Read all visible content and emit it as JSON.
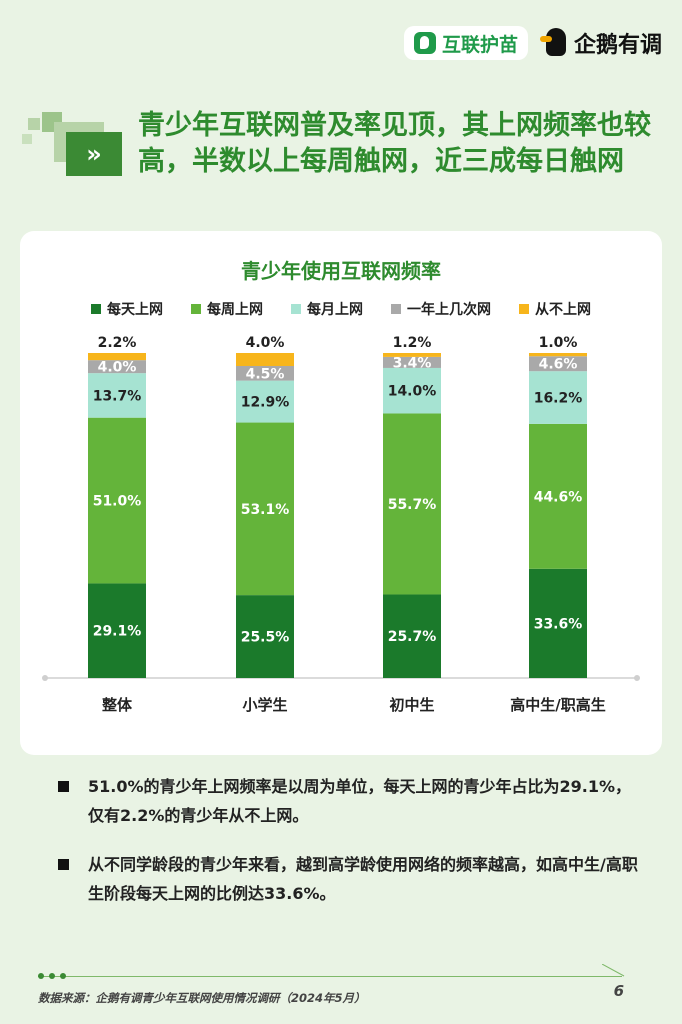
{
  "logos": {
    "huhu": "互联护苗",
    "qe": "企鹅有调"
  },
  "headline": "青少年互联网普及率见顶，其上网频率也较高，半数以上每周触网，近三成每日触网",
  "chart_data": {
    "type": "bar",
    "stacked": true,
    "title": "青少年使用互联网频率",
    "categories": [
      "整体",
      "小学生",
      "初中生",
      "高中生/职高生"
    ],
    "series": [
      {
        "name": "每天上网",
        "color": "#1b7a2b",
        "values": [
          29.1,
          25.5,
          25.7,
          33.6
        ],
        "labels": [
          "29.1%",
          "25.5%",
          "25.7%",
          "33.6%"
        ]
      },
      {
        "name": "每周上网",
        "color": "#64b43a",
        "values": [
          51.0,
          53.1,
          55.7,
          44.6
        ],
        "labels": [
          "51.0%",
          "53.1%",
          "55.7%",
          "44.6%"
        ]
      },
      {
        "name": "每月上网",
        "color": "#a6e3d2",
        "values": [
          13.7,
          12.9,
          14.0,
          16.2
        ],
        "labels": [
          "13.7%",
          "12.9%",
          "14.0%",
          "16.2%"
        ]
      },
      {
        "name": "一年上几次网",
        "color": "#a9a9a9",
        "values": [
          4.0,
          4.5,
          3.4,
          4.6
        ],
        "labels": [
          "4.0%",
          "4.5%",
          "3.4%",
          "4.6%"
        ]
      },
      {
        "name": "从不上网",
        "color": "#f7b51b",
        "values": [
          2.2,
          4.0,
          1.2,
          1.0
        ],
        "labels": [
          "2.2%",
          "4.0%",
          "1.2%",
          "1.0%"
        ]
      }
    ],
    "ylim": [
      0,
      100
    ],
    "legend_position": "top",
    "grid": false
  },
  "bullets": [
    "51.0%的青少年上网频率是以周为单位，每天上网的青少年占比为29.1%，仅有2.2%的青少年从不上网。",
    "从不同学龄段的青少年来看，越到高学龄使用网络的频率越高，如高中生/高职生阶段每天上网的比例达33.6%。"
  ],
  "footer": {
    "source": "数据来源：企鹅有调青少年互联网使用情况调研（2024年5月）",
    "page": "6"
  }
}
